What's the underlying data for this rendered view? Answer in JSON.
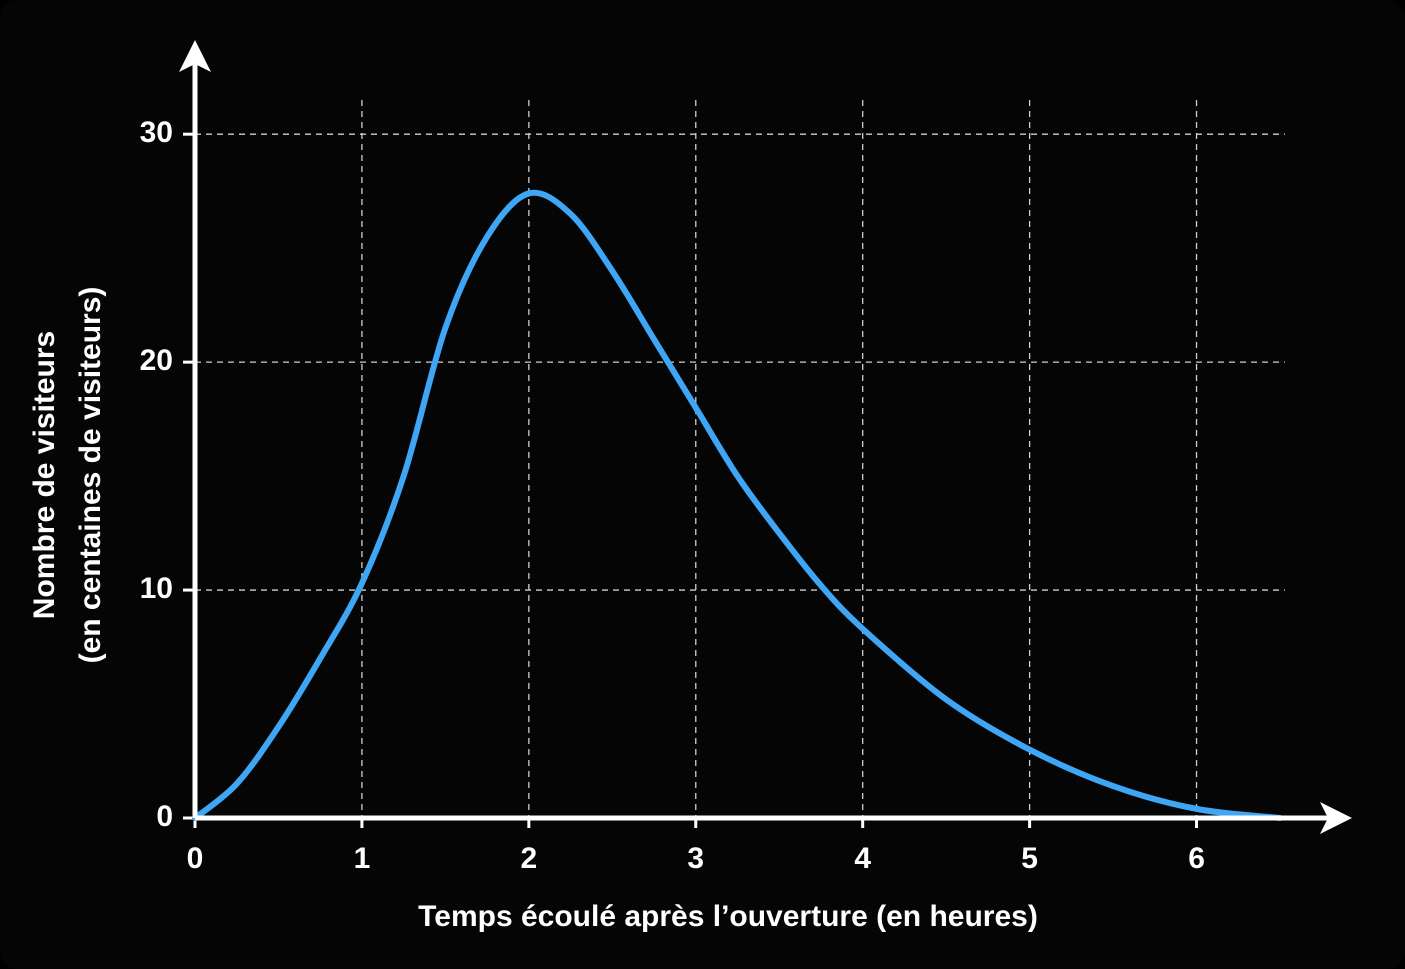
{
  "chart_data": {
    "type": "line",
    "xlabel": "Temps écoulé après l’ouverture (en heures)",
    "ylabel": [
      "Nombre de visiteurs",
      "(en centaines de visiteurs)"
    ],
    "x": [
      0,
      0.25,
      0.5,
      0.75,
      1,
      1.25,
      1.5,
      1.75,
      2,
      2.25,
      2.5,
      2.75,
      3,
      3.25,
      3.5,
      3.75,
      4,
      4.5,
      5,
      5.5,
      6,
      6.5
    ],
    "series": [
      {
        "color": "#3ea6f5",
        "values": [
          0,
          1.5,
          4,
          7,
          10.3,
          15,
          21.5,
          25.5,
          27.4,
          26.5,
          24,
          21,
          18,
          15,
          12.5,
          10.2,
          8.3,
          5.2,
          3,
          1.4,
          0.4,
          0
        ]
      }
    ],
    "xlim": [
      0,
      6.5
    ],
    "ylim": [
      0,
      31.5
    ],
    "xticks": [
      0,
      1,
      2,
      3,
      4,
      5,
      6
    ],
    "yticks": [
      0,
      10,
      20,
      30
    ],
    "grid": true
  }
}
